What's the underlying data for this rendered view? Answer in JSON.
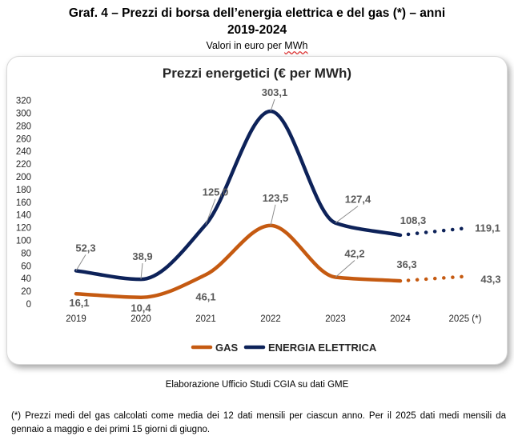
{
  "header": {
    "title_line1": "Graf. 4 – Prezzi di borsa dell’energia elettrica e del gas (*) – anni",
    "title_line2": "2019-2024",
    "subtitle_prefix": "Valori in euro per ",
    "subtitle_unit": "MWh"
  },
  "chart_data": {
    "type": "line",
    "title": "Prezzi energetici (€ per MWh)",
    "categories": [
      "2019",
      "2020",
      "2021",
      "2022",
      "2023",
      "2024",
      "2025 (*)"
    ],
    "ylim": [
      0,
      320
    ],
    "yticks": [
      "0",
      "20",
      "40",
      "60",
      "80",
      "100",
      "120",
      "140",
      "160",
      "180",
      "200",
      "220",
      "240",
      "260",
      "280",
      "300",
      "320"
    ],
    "grid": false,
    "legend_position": "bottom",
    "series": [
      {
        "name": "GAS",
        "color": "#c55a11",
        "values": [
          16.1,
          10.4,
          46.1,
          123.5,
          42.2,
          36.3,
          43.3
        ],
        "labels": [
          "16,1",
          "10,4",
          "46,1",
          "123,5",
          "42,2",
          "36,3",
          "43,3"
        ],
        "projected_last": true
      },
      {
        "name": "ENERGIA ELETTRICA",
        "color": "#0d2259",
        "values": [
          52.3,
          38.9,
          125.0,
          303.1,
          127.4,
          108.3,
          119.1
        ],
        "labels": [
          "52,3",
          "38,9",
          "125,0",
          "303,1",
          "127,4",
          "108,3",
          "119,1"
        ],
        "projected_last": true
      }
    ]
  },
  "footer": {
    "source": "Elaborazione Ufficio Studi CGIA su dati GME",
    "note": "(*) Prezzi medi del gas calcolati come media dei 12 dati mensili per ciascun anno. Per il 2025 dati medi mensili da gennaio a maggio e dei primi 15 giorni di giugno."
  }
}
